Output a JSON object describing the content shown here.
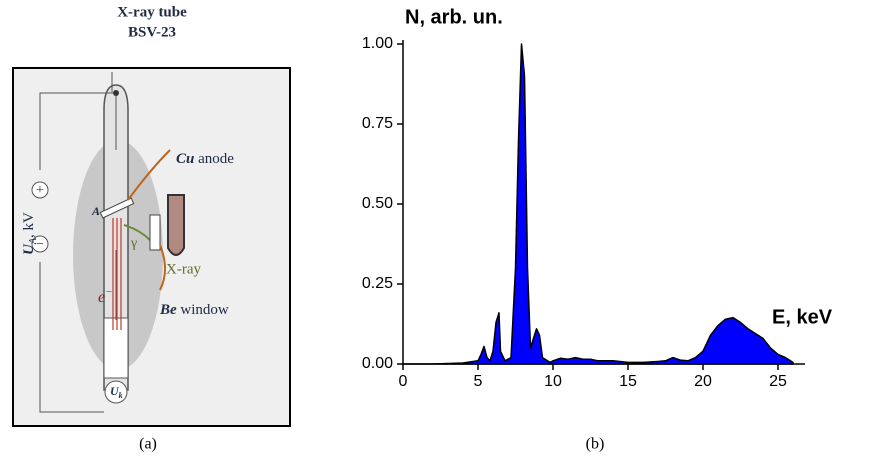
{
  "diagram": {
    "title": "X-ray tube",
    "subtitle": "BSV-23",
    "anode": {
      "emphasis": "Cu",
      "text": "anode"
    },
    "window": {
      "emphasis": "Be",
      "text": "window"
    },
    "xray_label": "X-ray",
    "gamma_label": "γ",
    "electron_label": "e",
    "electron_charge": "−",
    "anode_label": "A",
    "voltage_symbol": "U",
    "voltage_sub": "A",
    "voltage_unit": ", kV",
    "cathode_symbol": "U",
    "cathode_sub": "k",
    "plus": "+",
    "minus": "−",
    "caption": "(a)"
  },
  "chart_data": {
    "type": "area",
    "caption": "(b)",
    "ylabel": "N, arb. un.",
    "xlabel": "E, keV",
    "color": "#0000ff",
    "line_color": "#000000",
    "x": [
      0,
      2,
      4,
      5,
      5.2,
      5.4,
      5.6,
      5.8,
      6.0,
      6.2,
      6.4,
      6.5,
      6.8,
      7.2,
      7.5,
      7.7,
      7.9,
      8.1,
      8.3,
      8.5,
      8.7,
      8.9,
      9.1,
      9.3,
      9.8,
      10,
      10.5,
      11,
      11.5,
      12,
      12.5,
      13,
      14,
      15,
      16,
      17,
      17.5,
      18,
      18.5,
      19,
      19.5,
      20,
      20.5,
      21,
      21.5,
      22,
      22.5,
      23,
      23.5,
      24,
      24.5,
      25,
      25.5,
      26
    ],
    "y": [
      0,
      0,
      0.003,
      0.01,
      0.03,
      0.055,
      0.02,
      0.01,
      0.04,
      0.13,
      0.16,
      0.04,
      0.01,
      0.02,
      0.3,
      0.7,
      1.0,
      0.9,
      0.3,
      0.05,
      0.08,
      0.11,
      0.09,
      0.02,
      0.005,
      0.01,
      0.018,
      0.015,
      0.02,
      0.015,
      0.015,
      0.01,
      0.01,
      0.005,
      0.005,
      0.008,
      0.01,
      0.02,
      0.012,
      0.01,
      0.02,
      0.04,
      0.09,
      0.12,
      0.14,
      0.145,
      0.13,
      0.11,
      0.095,
      0.08,
      0.05,
      0.03,
      0.02,
      0.005
    ],
    "xlim": [
      0,
      26.8
    ],
    "ylim": [
      0,
      1.0125
    ],
    "xticks": [
      0,
      5,
      10,
      15,
      20,
      25
    ],
    "yticks": [
      {
        "value": 0,
        "label": "0.00"
      },
      {
        "value": 0.25,
        "label": "0.25"
      },
      {
        "value": 0.5,
        "label": "0.50"
      },
      {
        "value": 0.75,
        "label": "0.75"
      },
      {
        "value": 1,
        "label": "1.00"
      }
    ]
  }
}
